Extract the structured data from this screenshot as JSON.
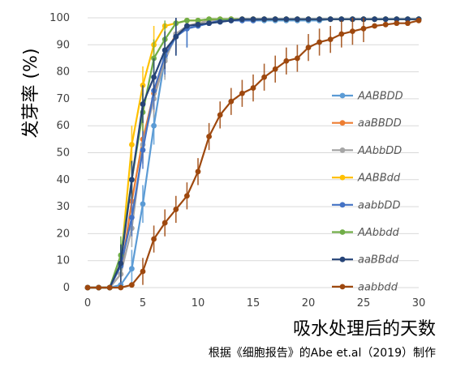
{
  "chart_data": {
    "type": "line",
    "title": "",
    "xlabel": "吸水处理后的天数",
    "ylabel": "发芽率 (%)",
    "credit": "根据《细胞报告》的Abe et.al（2019）制作",
    "xlim": [
      0,
      30
    ],
    "ylim": [
      0,
      100
    ],
    "xticks": [
      0,
      5,
      10,
      15,
      20,
      25,
      30
    ],
    "yticks": [
      0,
      10,
      20,
      30,
      40,
      50,
      60,
      70,
      80,
      90,
      100
    ],
    "grid": "horizontal",
    "legend_position": "right",
    "series": [
      {
        "name": "AABBDD",
        "color": "#5b9bd5",
        "x": [
          0,
          1,
          2,
          3,
          4,
          5,
          6,
          7,
          8,
          9,
          10,
          11,
          12,
          13,
          14,
          15,
          16,
          17,
          18,
          19,
          20,
          21,
          22,
          23,
          24,
          25,
          26,
          27,
          28,
          29,
          30
        ],
        "y": [
          0,
          0,
          0,
          1,
          7,
          31,
          60,
          85,
          93,
          96,
          97,
          98,
          98.5,
          99,
          99,
          99,
          99,
          99,
          99,
          99,
          99,
          99,
          99.5,
          99.5,
          99.5,
          99.5,
          99.5,
          99.5,
          99.5,
          99.5,
          99.5
        ]
      },
      {
        "name": "aaBBDD",
        "color": "#ed7d31",
        "x": [
          0,
          1,
          2,
          3,
          4,
          5,
          6,
          7,
          8,
          9,
          10,
          11,
          12,
          13,
          14,
          15,
          16,
          17,
          18,
          19,
          20,
          21,
          22,
          23,
          24,
          25,
          26,
          27,
          28,
          29,
          30
        ],
        "y": [
          0,
          0,
          0,
          5,
          32,
          55,
          72,
          86,
          94,
          97,
          98,
          99,
          99,
          99.5,
          99.5,
          99.5,
          99.5,
          99.5,
          99.5,
          99.5,
          99.5,
          99.5,
          99.5,
          99.5,
          99.5,
          99.5,
          99.5,
          99.5,
          99.5,
          99.5,
          99.5
        ]
      },
      {
        "name": "AAbbDD",
        "color": "#a5a5a5",
        "x": [
          0,
          1,
          2,
          3,
          4,
          5,
          6,
          7,
          8,
          9,
          10,
          11,
          12,
          13,
          14,
          15,
          16,
          17,
          18,
          19,
          20,
          21,
          22,
          23,
          24,
          25,
          26,
          27,
          28,
          29,
          30
        ],
        "y": [
          0,
          0,
          0,
          5,
          22,
          53,
          70,
          84,
          94,
          97,
          98,
          99,
          99,
          99.5,
          99.5,
          99.5,
          99.5,
          99.5,
          99.5,
          99.5,
          99.5,
          99.5,
          99.5,
          99.5,
          99.5,
          99.5,
          99.5,
          99.5,
          99.5,
          99.5,
          99.5
        ]
      },
      {
        "name": "AABBdd",
        "color": "#ffc000",
        "x": [
          0,
          1,
          2,
          3,
          4,
          5,
          6,
          7,
          8,
          9,
          10,
          11,
          12,
          13,
          14,
          15,
          16,
          17,
          18,
          19,
          20,
          21,
          22,
          23,
          24,
          25,
          26,
          27,
          28,
          29,
          30
        ],
        "y": [
          0,
          0,
          0,
          9,
          53,
          75,
          90,
          97,
          98,
          99,
          99,
          99.5,
          99.5,
          99.5,
          99.5,
          99.5,
          99.5,
          99.5,
          99.5,
          99.5,
          99.5,
          99.5,
          99.5,
          99.5,
          99.5,
          99.5,
          99.5,
          99.5,
          99.5,
          99.5,
          99.5
        ]
      },
      {
        "name": "aabbDD",
        "color": "#4472c4",
        "x": [
          0,
          1,
          2,
          3,
          4,
          5,
          6,
          7,
          8,
          9,
          10,
          11,
          12,
          13,
          14,
          15,
          16,
          17,
          18,
          19,
          20,
          21,
          22,
          23,
          24,
          25,
          26,
          27,
          28,
          29,
          30
        ],
        "y": [
          0,
          0,
          0,
          8,
          26,
          51,
          73,
          86,
          93,
          96,
          97,
          98,
          99,
          99,
          99,
          99,
          99.5,
          99.5,
          99.5,
          99.5,
          99.5,
          99.5,
          99.5,
          99.5,
          99.5,
          99.5,
          99.5,
          99.5,
          99.5,
          99.5,
          99.5
        ]
      },
      {
        "name": "AAbbdd",
        "color": "#70ad47",
        "x": [
          0,
          1,
          2,
          3,
          4,
          5,
          6,
          7,
          8,
          9,
          10,
          11,
          12,
          13,
          14,
          15,
          16,
          17,
          18,
          19,
          20,
          21,
          22,
          23,
          24,
          25,
          26,
          27,
          28,
          29,
          30
        ],
        "y": [
          0,
          0,
          0,
          12,
          40,
          65,
          85,
          92,
          98,
          99,
          99,
          99.5,
          99.5,
          99.5,
          99.5,
          99.5,
          99.5,
          99.5,
          99.5,
          99.5,
          99.5,
          99.5,
          99.5,
          99.5,
          99.5,
          99.5,
          99.5,
          99.5,
          99.5,
          99.5,
          99.5
        ]
      },
      {
        "name": "aaBBdd",
        "color": "#264478",
        "x": [
          0,
          1,
          2,
          3,
          4,
          5,
          6,
          7,
          8,
          9,
          10,
          11,
          12,
          13,
          14,
          15,
          16,
          17,
          18,
          19,
          20,
          21,
          22,
          23,
          24,
          25,
          26,
          27,
          28,
          29,
          30
        ],
        "y": [
          0,
          0,
          0,
          9,
          40,
          68,
          78,
          88,
          93,
          97,
          97.5,
          98,
          98.5,
          99,
          99.5,
          99.5,
          99.5,
          99.5,
          99.5,
          99.5,
          99.5,
          99.5,
          99.5,
          99.5,
          99.5,
          99.5,
          99.5,
          99.5,
          99.5,
          99.5,
          99.5
        ]
      },
      {
        "name": "aabbdd",
        "color": "#9e480e",
        "x": [
          0,
          1,
          2,
          3,
          4,
          5,
          6,
          7,
          8,
          9,
          10,
          11,
          12,
          13,
          14,
          15,
          16,
          17,
          18,
          19,
          20,
          21,
          22,
          23,
          24,
          25,
          26,
          27,
          28,
          29,
          30
        ],
        "y": [
          0,
          0,
          0,
          0,
          1,
          6,
          18,
          24,
          29,
          34,
          43,
          56,
          64,
          69,
          72,
          74,
          78,
          81,
          84,
          85,
          89,
          91,
          92,
          94,
          95,
          96,
          97,
          97.5,
          98,
          98,
          99
        ]
      }
    ]
  }
}
